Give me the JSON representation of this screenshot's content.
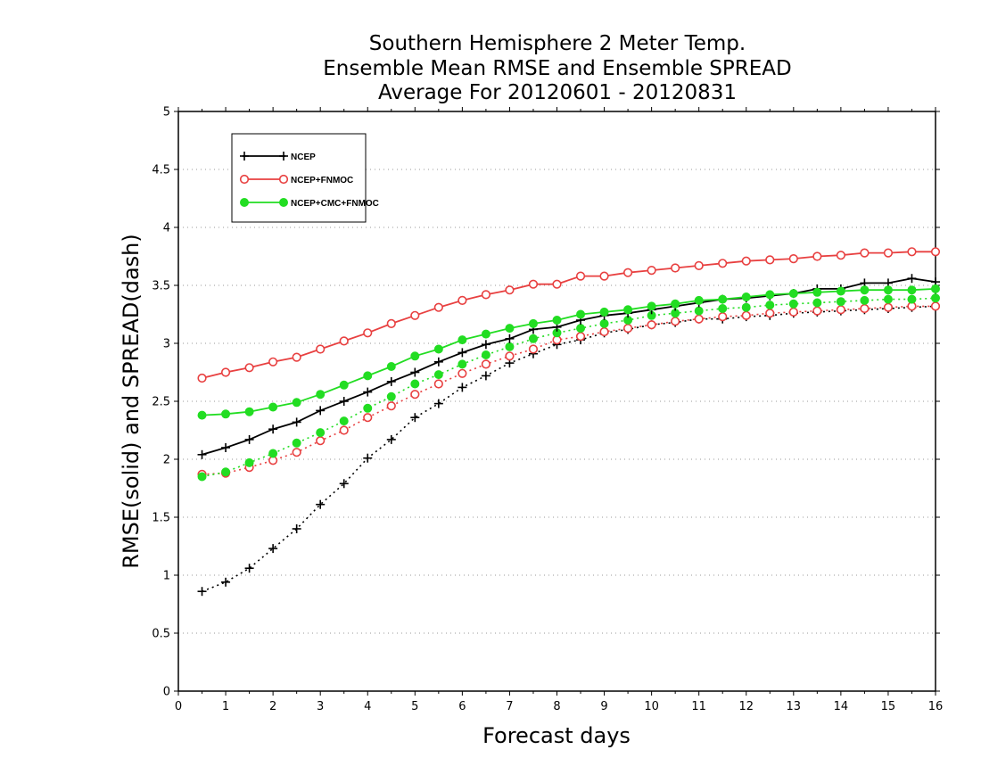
{
  "chart_data": {
    "type": "line",
    "title_lines": [
      "Southern Hemisphere 2 Meter Temp.",
      "Ensemble Mean RMSE and Ensemble SPREAD",
      "Average For 20120601 - 20120831"
    ],
    "xlabel": "Forecast days",
    "ylabel": "RMSE(solid) and SPREAD(dash)",
    "xlim": [
      0,
      16
    ],
    "ylim": [
      0,
      5
    ],
    "xticks": [
      0,
      1,
      2,
      3,
      4,
      5,
      6,
      7,
      8,
      9,
      10,
      11,
      12,
      13,
      14,
      15,
      16
    ],
    "yticks": [
      0,
      0.5,
      1,
      1.5,
      2,
      2.5,
      3,
      3.5,
      4,
      4.5,
      5
    ],
    "ytick_labels": [
      "0",
      "0.5",
      "1",
      "1.5",
      "2",
      "2.5",
      "3",
      "3.5",
      "4",
      "4.5",
      "5"
    ],
    "grid": "horizontal dotted",
    "legend_position": "top-left",
    "x": [
      0.5,
      1.0,
      1.5,
      2.0,
      2.5,
      3.0,
      3.5,
      4.0,
      4.5,
      5.0,
      5.5,
      6.0,
      6.5,
      7.0,
      7.5,
      8.0,
      8.5,
      9.0,
      9.5,
      10.0,
      10.5,
      11.0,
      11.5,
      12.0,
      12.5,
      13.0,
      13.5,
      14.0,
      14.5,
      15.0,
      15.5,
      16.0
    ],
    "series": [
      {
        "name": "NCEP",
        "metric": "RMSE",
        "color": "#000000",
        "marker": "plus",
        "line": "solid",
        "values": [
          2.04,
          2.1,
          2.17,
          2.26,
          2.32,
          2.42,
          2.5,
          2.58,
          2.67,
          2.75,
          2.84,
          2.92,
          2.99,
          3.04,
          3.12,
          3.14,
          3.2,
          3.24,
          3.26,
          3.29,
          3.32,
          3.35,
          3.38,
          3.39,
          3.41,
          3.43,
          3.47,
          3.47,
          3.52,
          3.52,
          3.56,
          3.53
        ]
      },
      {
        "name": "NCEP+FNMOC",
        "metric": "RMSE",
        "color": "#e84040",
        "marker": "open-circle",
        "line": "solid",
        "values": [
          2.7,
          2.75,
          2.79,
          2.84,
          2.88,
          2.95,
          3.02,
          3.09,
          3.17,
          3.24,
          3.31,
          3.37,
          3.42,
          3.46,
          3.51,
          3.51,
          3.58,
          3.58,
          3.61,
          3.63,
          3.65,
          3.67,
          3.69,
          3.71,
          3.72,
          3.73,
          3.75,
          3.76,
          3.78,
          3.78,
          3.79,
          3.79
        ]
      },
      {
        "name": "NCEP+CMC+FNMOC",
        "metric": "RMSE",
        "color": "#22dd22",
        "marker": "filled-circle",
        "line": "solid",
        "values": [
          2.38,
          2.39,
          2.41,
          2.45,
          2.49,
          2.56,
          2.64,
          2.72,
          2.8,
          2.89,
          2.95,
          3.03,
          3.08,
          3.13,
          3.17,
          3.2,
          3.25,
          3.27,
          3.29,
          3.32,
          3.34,
          3.37,
          3.38,
          3.4,
          3.42,
          3.43,
          3.44,
          3.45,
          3.46,
          3.46,
          3.46,
          3.47
        ]
      },
      {
        "name": "NCEP",
        "metric": "SPREAD",
        "color": "#000000",
        "marker": "plus",
        "line": "dotted",
        "values": [
          0.86,
          0.94,
          1.06,
          1.23,
          1.4,
          1.61,
          1.79,
          2.01,
          2.17,
          2.36,
          2.48,
          2.62,
          2.72,
          2.83,
          2.91,
          2.99,
          3.03,
          3.09,
          3.12,
          3.16,
          3.18,
          3.21,
          3.21,
          3.23,
          3.24,
          3.26,
          3.27,
          3.28,
          3.29,
          3.3,
          3.31,
          3.32
        ]
      },
      {
        "name": "NCEP+FNMOC",
        "metric": "SPREAD",
        "color": "#e84040",
        "marker": "open-circle",
        "line": "dotted",
        "values": [
          1.87,
          1.88,
          1.93,
          1.99,
          2.06,
          2.16,
          2.25,
          2.36,
          2.46,
          2.56,
          2.65,
          2.74,
          2.82,
          2.89,
          2.95,
          3.03,
          3.06,
          3.1,
          3.13,
          3.16,
          3.19,
          3.21,
          3.23,
          3.24,
          3.26,
          3.27,
          3.28,
          3.29,
          3.3,
          3.31,
          3.32,
          3.32
        ]
      },
      {
        "name": "NCEP+CMC+FNMOC",
        "metric": "SPREAD",
        "color": "#22dd22",
        "marker": "filled-circle",
        "line": "dotted",
        "values": [
          1.85,
          1.89,
          1.97,
          2.05,
          2.14,
          2.23,
          2.33,
          2.44,
          2.54,
          2.65,
          2.73,
          2.82,
          2.9,
          2.97,
          3.04,
          3.09,
          3.13,
          3.17,
          3.2,
          3.24,
          3.26,
          3.28,
          3.3,
          3.31,
          3.33,
          3.34,
          3.35,
          3.36,
          3.37,
          3.38,
          3.38,
          3.39
        ]
      }
    ],
    "legend": [
      "NCEP",
      "NCEP+FNMOC",
      "NCEP+CMC+FNMOC"
    ]
  }
}
